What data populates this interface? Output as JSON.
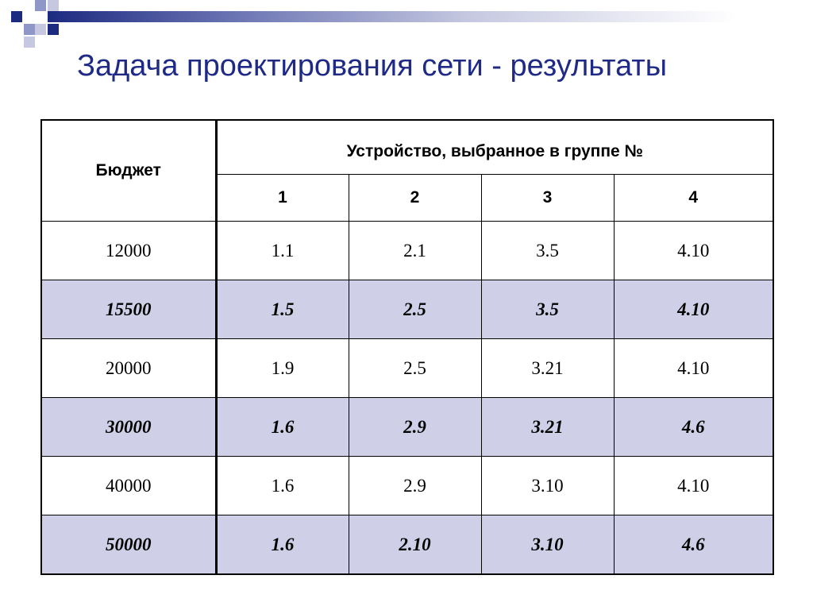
{
  "slide": {
    "title": "Задача проектирования сети - результаты"
  },
  "colors": {
    "title": "#1f2a86",
    "highlight_row": "#cfd0e8",
    "deco_dark": "#1c2a80",
    "deco_light": "#9aa0cc"
  },
  "table": {
    "budget_header": "Бюджет",
    "group_header": "Устройство, выбранное в группе №",
    "group_numbers": [
      "1",
      "2",
      "3",
      "4"
    ],
    "rows": [
      {
        "budget": "12000",
        "devices": [
          "1.1",
          "2.1",
          "3.5",
          "4.10"
        ],
        "highlight": false
      },
      {
        "budget": "15500",
        "devices": [
          "1.5",
          "2.5",
          "3.5",
          "4.10"
        ],
        "highlight": true
      },
      {
        "budget": "20000",
        "devices": [
          "1.9",
          "2.5",
          "3.21",
          "4.10"
        ],
        "highlight": false
      },
      {
        "budget": "30000",
        "devices": [
          "1.6",
          "2.9",
          "3.21",
          "4.6"
        ],
        "highlight": true
      },
      {
        "budget": "40000",
        "devices": [
          "1.6",
          "2.9",
          "3.10",
          "4.10"
        ],
        "highlight": false
      },
      {
        "budget": "50000",
        "devices": [
          "1.6",
          "2.10",
          "3.10",
          "4.6"
        ],
        "highlight": true
      }
    ]
  }
}
